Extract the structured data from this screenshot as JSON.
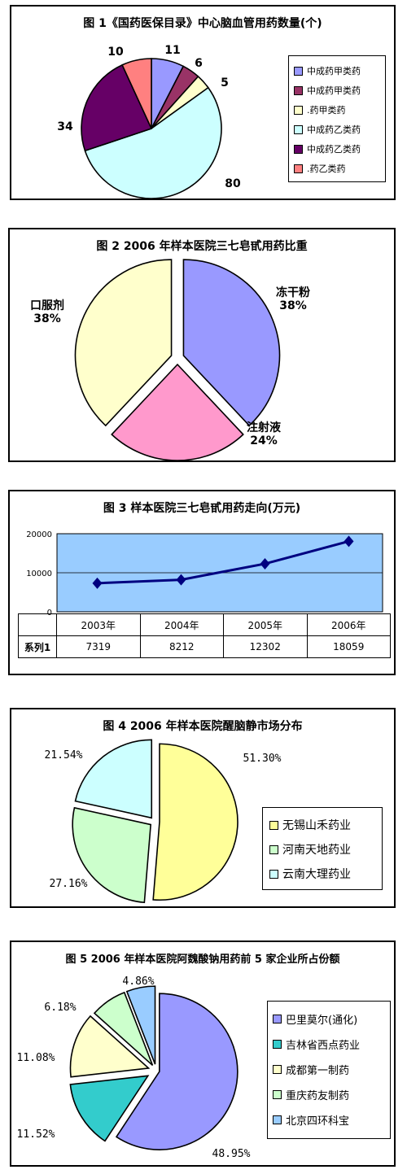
{
  "colors": {
    "purple": "#9999ff",
    "maroon": "#993366",
    "cream": "#ffffcc",
    "lightcyan": "#ccffff",
    "darkpurple": "#660066",
    "salmon": "#ff8080",
    "pink": "#ff99cc",
    "lightgreen": "#ccffcc",
    "teal": "#33cccc",
    "plotbg": "#99ccff",
    "line": "#000080"
  },
  "chart_data": [
    {
      "type": "pie",
      "title": "图 1《国药医保目录》中心脑血管用药数量(个)",
      "categories": [
        "中成药甲类药",
        "中成药甲类药",
        "化学药甲类药",
        "中成药乙类药",
        "中成药乙类药",
        "化学药乙类药"
      ],
      "legend_display": [
        "中成药甲类药",
        "中成药甲类药",
        ".药甲类药",
        "中成药乙类药",
        "中成药乙类药",
        ".药乙类药"
      ],
      "values": [
        11,
        6,
        5,
        80,
        34,
        10
      ],
      "value_labels": [
        "11",
        "6",
        "5",
        "80",
        "34",
        "10"
      ],
      "colors": [
        "#9999ff",
        "#993366",
        "#ffffcc",
        "#ccffff",
        "#660066",
        "#ff8080"
      ],
      "legend": "right"
    },
    {
      "type": "pie",
      "title": "图 2 2006 年样本医院三七皂甙用药比重",
      "categories": [
        "冻干粉",
        "注射液",
        "口服剂"
      ],
      "values": [
        38,
        24,
        38
      ],
      "value_labels": [
        "38%",
        "24%",
        "38%"
      ],
      "colors": [
        "#9999ff",
        "#ff99cc",
        "#ffffcc"
      ],
      "legend": "none"
    },
    {
      "type": "line",
      "title": "图 3 样本医院三七皂甙用药走向(万元)",
      "categories": [
        "2003年",
        "2004年",
        "2005年",
        "2006年"
      ],
      "series": [
        {
          "name": "系列1",
          "values": [
            7319,
            8212,
            12302,
            18059
          ]
        }
      ],
      "ylim": [
        0,
        20000
      ],
      "yticks": [
        "20000",
        "10000",
        "0"
      ],
      "grid": true,
      "table_header": "系列1",
      "table_values": [
        "7319",
        "8212",
        "12302",
        "18059"
      ]
    },
    {
      "type": "pie",
      "title": "图 4 2006 年样本医院醒脑静市场分布",
      "categories": [
        "无锡山禾药业",
        "河南天地药业",
        "云南大理药业"
      ],
      "values": [
        51.3,
        27.16,
        21.54
      ],
      "value_labels": [
        "51.30%",
        "27.16%",
        "21.54%"
      ],
      "colors": [
        "#ffff99",
        "#ccffcc",
        "#ccffff"
      ],
      "legend": "right"
    },
    {
      "type": "pie",
      "title": "图 5 2006 年样本医院阿魏酸钠用药前 5 家企业所占份额",
      "categories": [
        "巴里莫尔(通化)",
        "吉林省西点药业",
        "成都第一制药",
        "重庆药友制药",
        "北京四环科宝"
      ],
      "values": [
        48.95,
        11.52,
        11.08,
        6.18,
        4.86
      ],
      "value_labels": [
        "48.95%",
        "11.52%",
        "11.08%",
        "6.18%",
        "4.86%"
      ],
      "colors": [
        "#9999ff",
        "#33cccc",
        "#ffffcc",
        "#ccffcc",
        "#99ccff"
      ],
      "legend": "right"
    }
  ]
}
